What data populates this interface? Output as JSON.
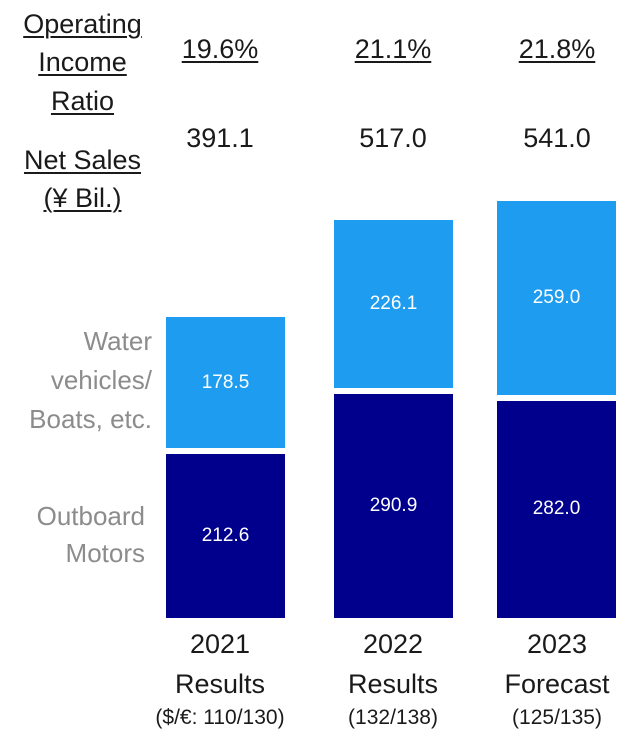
{
  "header": {
    "operating_income_ratio_label": [
      "Operating",
      "Income",
      "Ratio"
    ],
    "net_sales_label": [
      "Net Sales",
      "(¥ Bil.)"
    ]
  },
  "segments": {
    "top_label": [
      "Water",
      "vehicles/",
      "Boats, etc."
    ],
    "bottom_label": [
      "Outboard",
      "Motors"
    ]
  },
  "colors": {
    "water_vehicles": "#1e9cf0",
    "outboard_motors": "#00008c"
  },
  "chart_data": {
    "type": "bar",
    "stacked": true,
    "unit": "¥ Bil.",
    "categories": [
      "2021",
      "2022",
      "2023"
    ],
    "category_sublabels": [
      "Results",
      "Results",
      "Forecast"
    ],
    "exchange_rates": [
      "($/€: 110/130)",
      "(132/138)",
      "(125/135)"
    ],
    "net_sales": [
      "391.1",
      "517.0",
      "541.0"
    ],
    "operating_income_ratio": [
      "19.6%",
      "21.1%",
      "21.8%"
    ],
    "series": [
      {
        "name": "Outboard Motors",
        "values": [
          212.6,
          290.9,
          282.0
        ],
        "labels": [
          "212.6",
          "290.9",
          "282.0"
        ]
      },
      {
        "name": "Water vehicles/ Boats, etc.",
        "values": [
          178.5,
          226.1,
          259.0
        ],
        "labels": [
          "178.5",
          "226.1",
          "259.0"
        ]
      }
    ],
    "legend": "left",
    "grid": false
  }
}
